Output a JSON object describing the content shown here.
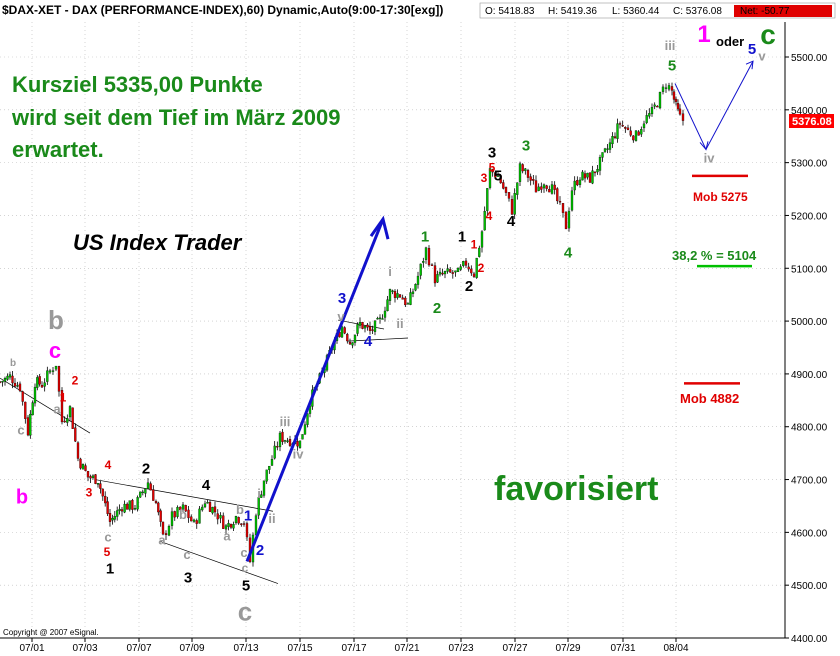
{
  "colors": {
    "up": "#00c000",
    "down": "#e00000",
    "wick": "#000000",
    "grid": "#bbbbbb",
    "green_text": "#1a8a1a",
    "blue": "#1111cc",
    "magenta": "#ff00ff",
    "gray": "#999999",
    "red": "#e00000",
    "black": "#000000",
    "price_tag": "#ff0000"
  },
  "header": {
    "title": "$DAX-XET - DAX (PERFORMANCE-INDEX),60) Dynamic,Auto(9:00-17:30[exg])",
    "open": "O: 5418.83",
    "high": "H: 5419.36",
    "low": "L: 5360.44",
    "close": "C: 5376.08",
    "net": "Net: -50.77"
  },
  "copyright": "Copyright @ 2007 eSignal.",
  "annotations": {
    "kursziel_lines": [
      "Kursziel 5335,00 Punkte",
      "wird seit dem Tief im März 2009",
      "erwartet."
    ],
    "us_index_trader": "US Index Trader",
    "favorisiert": "favorisiert",
    "mob_5275": "Mob 5275",
    "fib_38": "38,2 % = 5104",
    "mob_4882": "Mob 4882",
    "oder": "oder",
    "price_tag": "5376.08"
  },
  "wave_labels": [
    {
      "t": "b",
      "x": 13,
      "p": 4915,
      "c": "gray",
      "s": 10
    },
    {
      "t": "b",
      "x": 22,
      "p": 4655,
      "c": "magenta",
      "s": 20
    },
    {
      "t": "c",
      "x": 21,
      "p": 4785,
      "c": "gray",
      "s": 13
    },
    {
      "t": "b",
      "x": 56,
      "p": 4985,
      "c": "gray",
      "s": 26
    },
    {
      "t": "c",
      "x": 55,
      "p": 4930,
      "c": "magenta",
      "s": 22
    },
    {
      "t": "2",
      "x": 75,
      "p": 4880,
      "c": "red",
      "s": 12
    },
    {
      "t": "1",
      "x": 63,
      "p": 4848,
      "c": "red",
      "s": 12
    },
    {
      "t": "a",
      "x": 57,
      "p": 4825,
      "c": "gray",
      "s": 13
    },
    {
      "t": "4",
      "x": 108,
      "p": 4720,
      "c": "red",
      "s": 12
    },
    {
      "t": "3",
      "x": 89,
      "p": 4668,
      "c": "red",
      "s": 12
    },
    {
      "t": "5",
      "x": 107,
      "p": 4555,
      "c": "red",
      "s": 12
    },
    {
      "t": "c",
      "x": 108,
      "p": 4583,
      "c": "gray",
      "s": 13
    },
    {
      "t": "1",
      "x": 110,
      "p": 4522,
      "c": "black",
      "s": 15
    },
    {
      "t": "2",
      "x": 146,
      "p": 4711,
      "c": "black",
      "s": 15
    },
    {
      "t": "4",
      "x": 206,
      "p": 4680,
      "c": "black",
      "s": 15
    },
    {
      "t": "b",
      "x": 183,
      "p": 4625,
      "c": "gray",
      "s": 13
    },
    {
      "t": "b",
      "x": 240,
      "p": 4635,
      "c": "gray",
      "s": 13
    },
    {
      "t": "a",
      "x": 162,
      "p": 4577,
      "c": "gray",
      "s": 13
    },
    {
      "t": "c",
      "x": 187,
      "p": 4550,
      "c": "gray",
      "s": 13
    },
    {
      "t": "a",
      "x": 227,
      "p": 4585,
      "c": "gray",
      "s": 13
    },
    {
      "t": "c",
      "x": 244,
      "p": 4553,
      "c": "gray",
      "s": 13
    },
    {
      "t": "3",
      "x": 188,
      "p": 4505,
      "c": "black",
      "s": 15
    },
    {
      "t": "c",
      "x": 245,
      "p": 4525,
      "c": "gray",
      "s": 12
    },
    {
      "t": "5",
      "x": 246,
      "p": 4490,
      "c": "black",
      "s": 15
    },
    {
      "t": "c",
      "x": 245,
      "p": 4433,
      "c": "gray",
      "s": 26
    },
    {
      "t": "1",
      "x": 248,
      "p": 4622,
      "c": "blue",
      "s": 15
    },
    {
      "t": "2",
      "x": 260,
      "p": 4557,
      "c": "blue",
      "s": 15
    },
    {
      "t": "i",
      "x": 259,
      "p": 4665,
      "c": "gray",
      "s": 13
    },
    {
      "t": "ii",
      "x": 272,
      "p": 4618,
      "c": "gray",
      "s": 13
    },
    {
      "t": "iii",
      "x": 285,
      "p": 4801,
      "c": "gray",
      "s": 13
    },
    {
      "t": "iv",
      "x": 298,
      "p": 4740,
      "c": "gray",
      "s": 13
    },
    {
      "t": "3",
      "x": 342,
      "p": 5034,
      "c": "blue",
      "s": 15
    },
    {
      "t": "v",
      "x": 341,
      "p": 5000,
      "c": "gray",
      "s": 13
    },
    {
      "t": "4",
      "x": 368,
      "p": 4953,
      "c": "blue",
      "s": 15
    },
    {
      "t": "ii",
      "x": 400,
      "p": 4987,
      "c": "gray",
      "s": 13
    },
    {
      "t": "i",
      "x": 390,
      "p": 5085,
      "c": "gray",
      "s": 13
    },
    {
      "t": "1",
      "x": 425,
      "p": 5151,
      "c": "green",
      "s": 15
    },
    {
      "t": "2",
      "x": 437,
      "p": 5015,
      "c": "green",
      "s": 15
    },
    {
      "t": "1",
      "x": 462,
      "p": 5151,
      "c": "black",
      "s": 15
    },
    {
      "t": "2",
      "x": 469,
      "p": 5057,
      "c": "black",
      "s": 15
    },
    {
      "t": "1",
      "x": 474,
      "p": 5137,
      "c": "red",
      "s": 12
    },
    {
      "t": "2",
      "x": 481,
      "p": 5093,
      "c": "red",
      "s": 12
    },
    {
      "t": "4",
      "x": 489,
      "p": 5191,
      "c": "red",
      "s": 12
    },
    {
      "t": "3",
      "x": 484,
      "p": 5263,
      "c": "red",
      "s": 12
    },
    {
      "t": "5",
      "x": 492,
      "p": 5283,
      "c": "red",
      "s": 12
    },
    {
      "t": "3",
      "x": 492,
      "p": 5310,
      "c": "black",
      "s": 15
    },
    {
      "t": "5",
      "x": 498,
      "p": 5266,
      "c": "black",
      "s": 15
    },
    {
      "t": "4",
      "x": 511,
      "p": 5180,
      "c": "black",
      "s": 15
    },
    {
      "t": "3",
      "x": 526,
      "p": 5323,
      "c": "green",
      "s": 15
    },
    {
      "t": "4",
      "x": 568,
      "p": 5120,
      "c": "green",
      "s": 15
    },
    {
      "t": "5",
      "x": 672,
      "p": 5474,
      "c": "green",
      "s": 15
    },
    {
      "t": "iii",
      "x": 670,
      "p": 5513,
      "c": "gray",
      "s": 13
    },
    {
      "t": "iv",
      "x": 709,
      "p": 5300,
      "c": "gray",
      "s": 13
    },
    {
      "t": "1",
      "x": 704,
      "p": 5528,
      "c": "magenta",
      "s": 24
    },
    {
      "t": "5",
      "x": 752,
      "p": 5506,
      "c": "blue",
      "s": 15
    },
    {
      "t": "v",
      "x": 762,
      "p": 5493,
      "c": "gray",
      "s": 13
    },
    {
      "t": "c",
      "x": 768,
      "p": 5525,
      "c": "green",
      "s": 28
    }
  ],
  "chart_data": {
    "type": "candlestick",
    "title": "$DAX-XET - DAX (PERFORMANCE-INDEX),60) Dynamic,Auto(9:00-17:30[exg])",
    "ylim": [
      4400,
      5600
    ],
    "y_ticks": [
      4400,
      4500,
      4600,
      4700,
      4800,
      4900,
      5000,
      5100,
      5200,
      5300,
      5400,
      5500
    ],
    "x_ticks": [
      "07/01",
      "07/03",
      "07/07",
      "07/09",
      "07/13",
      "07/15",
      "07/17",
      "07/21",
      "07/23",
      "07/27",
      "07/29",
      "07/31",
      "08/04"
    ],
    "last_price": 5376.08,
    "ohlc_path_approx": [
      [
        0,
        4885
      ],
      [
        10,
        4895
      ],
      [
        20,
        4875
      ],
      [
        28,
        4790
      ],
      [
        35,
        4885
      ],
      [
        42,
        4880
      ],
      [
        50,
        4905
      ],
      [
        56,
        4920
      ],
      [
        62,
        4810
      ],
      [
        70,
        4835
      ],
      [
        78,
        4740
      ],
      [
        88,
        4705
      ],
      [
        98,
        4700
      ],
      [
        110,
        4620
      ],
      [
        122,
        4650
      ],
      [
        135,
        4650
      ],
      [
        148,
        4695
      ],
      [
        156,
        4655
      ],
      [
        163,
        4590
      ],
      [
        172,
        4630
      ],
      [
        183,
        4645
      ],
      [
        194,
        4615
      ],
      [
        205,
        4660
      ],
      [
        215,
        4640
      ],
      [
        226,
        4610
      ],
      [
        236,
        4630
      ],
      [
        244,
        4620
      ],
      [
        250,
        4545
      ],
      [
        256,
        4640
      ],
      [
        264,
        4700
      ],
      [
        272,
        4740
      ],
      [
        280,
        4780
      ],
      [
        290,
        4775
      ],
      [
        300,
        4770
      ],
      [
        310,
        4850
      ],
      [
        322,
        4900
      ],
      [
        332,
        4950
      ],
      [
        342,
        4990
      ],
      [
        350,
        4960
      ],
      [
        360,
        4995
      ],
      [
        370,
        4980
      ],
      [
        380,
        5000
      ],
      [
        390,
        5055
      ],
      [
        400,
        5050
      ],
      [
        408,
        5030
      ],
      [
        418,
        5085
      ],
      [
        426,
        5135
      ],
      [
        435,
        5080
      ],
      [
        445,
        5090
      ],
      [
        458,
        5090
      ],
      [
        466,
        5110
      ],
      [
        474,
        5090
      ],
      [
        482,
        5170
      ],
      [
        490,
        5285
      ],
      [
        498,
        5275
      ],
      [
        506,
        5240
      ],
      [
        512,
        5210
      ],
      [
        520,
        5290
      ],
      [
        528,
        5275
      ],
      [
        536,
        5250
      ],
      [
        544,
        5265
      ],
      [
        552,
        5250
      ],
      [
        560,
        5215
      ],
      [
        566,
        5180
      ],
      [
        572,
        5250
      ],
      [
        580,
        5275
      ],
      [
        590,
        5270
      ],
      [
        600,
        5300
      ],
      [
        610,
        5335
      ],
      [
        620,
        5375
      ],
      [
        628,
        5360
      ],
      [
        636,
        5350
      ],
      [
        644,
        5380
      ],
      [
        652,
        5395
      ],
      [
        660,
        5425
      ],
      [
        666,
        5450
      ],
      [
        672,
        5435
      ],
      [
        676,
        5405
      ],
      [
        680,
        5385
      ],
      [
        686,
        5376
      ]
    ],
    "projection": [
      [
        675,
        5450
      ],
      [
        706,
        5325
      ],
      [
        753,
        5492
      ]
    ],
    "blue_impulse": [
      [
        247,
        4545
      ],
      [
        383,
        5193
      ]
    ],
    "levels": [
      {
        "name": "Mob 5275",
        "value": 5275,
        "color": "red"
      },
      {
        "name": "38,2 % = 5104",
        "value": 5104,
        "color": "green"
      },
      {
        "name": "Mob 4882",
        "value": 4882,
        "color": "red"
      }
    ]
  }
}
